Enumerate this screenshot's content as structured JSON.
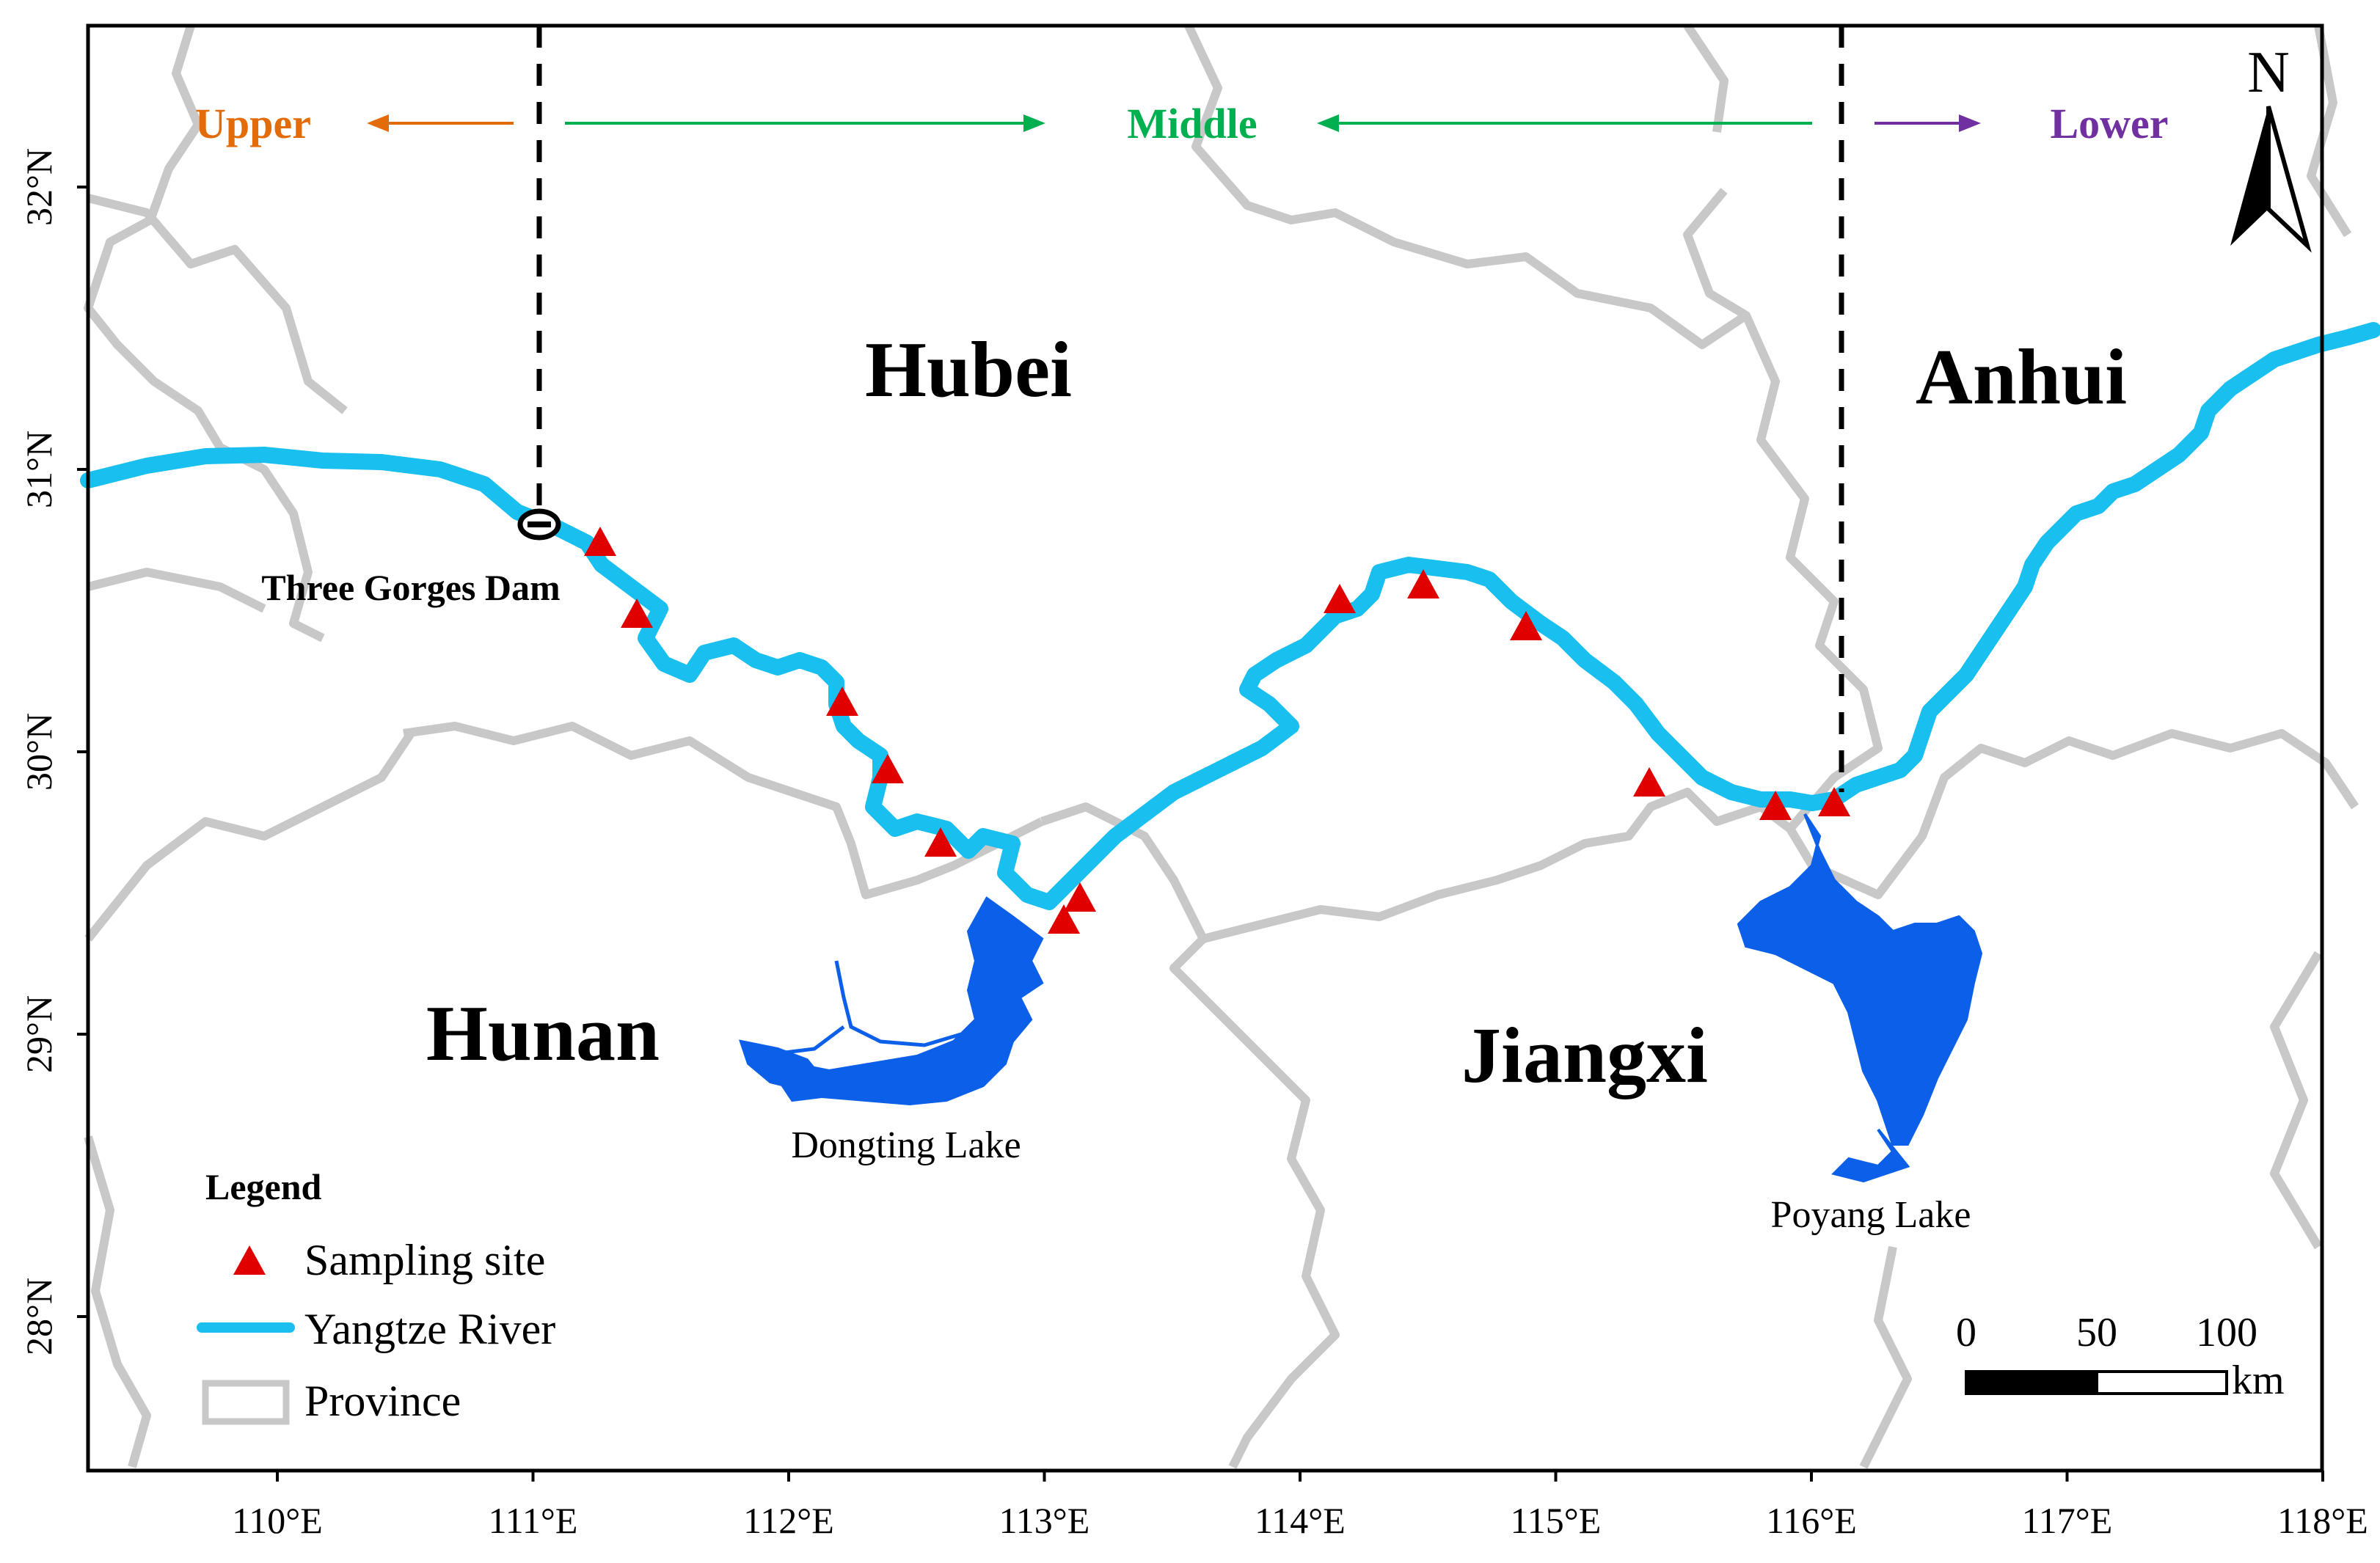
{
  "axes": {
    "x_ticks": [
      "110°E",
      "111°E",
      "112°E",
      "113°E",
      "114°E",
      "115°E",
      "116°E",
      "117°E",
      "118°E"
    ],
    "y_ticks": [
      "32°N",
      "31°N",
      "30°N",
      "29°N",
      "28°N"
    ]
  },
  "reaches": {
    "upper": {
      "label": "Upper",
      "color": "#E36C0A"
    },
    "middle": {
      "label": "Middle",
      "color": "#00B050"
    },
    "lower": {
      "label": "Lower",
      "color": "#7030A0"
    }
  },
  "provinces": {
    "hubei": "Hubei",
    "anhui": "Anhui",
    "hunan": "Hunan",
    "jiangxi": "Jiangxi"
  },
  "places": {
    "dam": "Three Gorges Dam",
    "dongting": "Dongting Lake",
    "poyang": "Poyang Lake"
  },
  "legend": {
    "title": "Legend",
    "items": [
      "Sampling site",
      "Yangtze River",
      "Province"
    ]
  },
  "scalebar": {
    "ticks": [
      "0",
      "50",
      "100"
    ],
    "unit": "km"
  },
  "north": "N",
  "colors": {
    "river": "#19BFEE",
    "lake": "#0B5FE8",
    "site": "#E00000",
    "province_border": "#C8C8C8"
  }
}
